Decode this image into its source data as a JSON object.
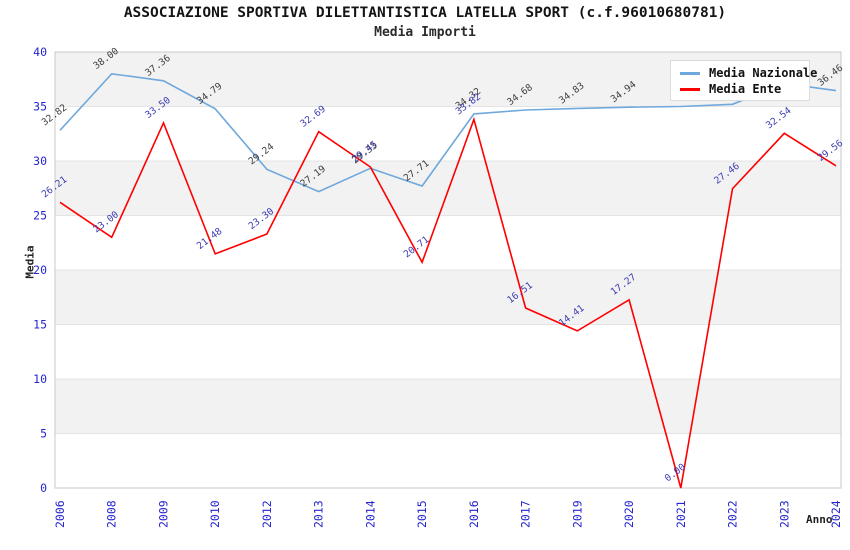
{
  "title": "ASSOCIAZIONE SPORTIVA DILETTANTISTICA LATELLA SPORT (c.f.96010680781)",
  "subtitle": "Media Importi",
  "axes": {
    "y_label": "Media",
    "x_label": "Anno",
    "y_ticks": [
      0,
      5,
      10,
      15,
      20,
      25,
      30,
      35,
      40
    ],
    "tick_color": "#2525cf"
  },
  "legend": {
    "items": [
      {
        "label": "Media Nazionale"
      },
      {
        "label": "Media Ente"
      }
    ]
  },
  "colors": {
    "band_gray": "#f2f2f2",
    "band_white": "#ffffff",
    "gridline": "#e4e4e4",
    "plot_border": "#c9c9c9"
  },
  "chart_data": {
    "type": "line",
    "title": "ASSOCIAZIONE SPORTIVA DILETTANTISTICA LATELLA SPORT (c.f.96010680781)",
    "subtitle": "Media Importi",
    "xlabel": "Anno",
    "ylabel": "Media",
    "ylim": [
      0,
      40
    ],
    "grid": true,
    "legend_position": "top-right",
    "categories": [
      "2006",
      "2008",
      "2009",
      "2010",
      "2012",
      "2013",
      "2014",
      "2015",
      "2016",
      "2017",
      "2019",
      "2020",
      "2021",
      "2022",
      "2023",
      "2024"
    ],
    "series": [
      {
        "name": "Media Nazionale",
        "color": "#6fa8dc",
        "label_color": "#3d3d3d",
        "values": [
          32.82,
          38.0,
          37.36,
          34.79,
          29.24,
          27.19,
          29.33,
          27.71,
          34.32,
          34.68,
          34.83,
          34.94,
          35.0,
          35.2,
          37.1,
          36.46
        ],
        "labels": [
          "32.82",
          "38.00",
          "37.36",
          "34.79",
          "29.24",
          "27.19",
          "29.33",
          "27.71",
          "34.32",
          "34.68",
          "34.83",
          "34.94",
          null,
          null,
          null,
          "36.46"
        ]
      },
      {
        "name": "Media Ente",
        "color": "#ff0000",
        "label_color": "#3c3cb4",
        "values": [
          26.21,
          23.0,
          33.5,
          21.48,
          23.3,
          32.69,
          29.45,
          20.71,
          33.82,
          16.51,
          14.41,
          17.27,
          0.0,
          27.46,
          32.54,
          29.56
        ],
        "labels": [
          "26.21",
          "23.00",
          "33.50",
          "21.48",
          "23.30",
          "32.69",
          "29.45",
          "20.71",
          "33.82",
          "16.51",
          "14.41",
          "17.27",
          "0.00",
          "27.46",
          "32.54",
          "29.56"
        ]
      }
    ]
  }
}
